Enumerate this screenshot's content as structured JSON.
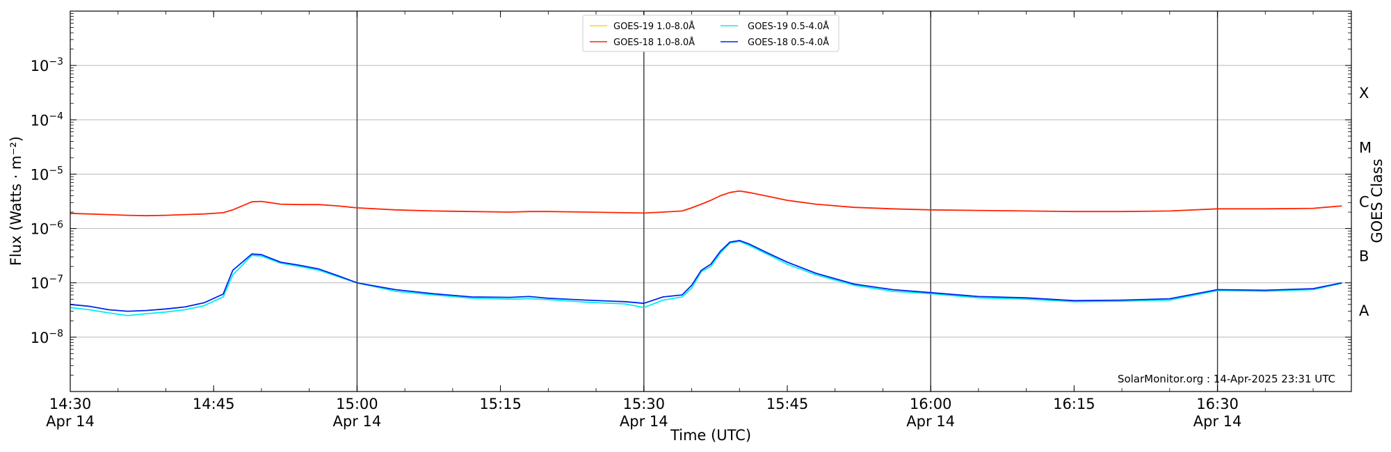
{
  "chart_data": {
    "type": "line",
    "title": "",
    "xlabel": "Time (UTC)",
    "ylabel": "Flux (Watts · m⁻²)",
    "y2label": "GOES Class",
    "yscale": "log",
    "ylim": [
      1e-09,
      0.01
    ],
    "xlim": [
      "2025-04-14 14:30",
      "2025-04-14 16:44"
    ],
    "grid": "horizontal at each decade",
    "legend_position": "top-center",
    "y_ticks": [
      {
        "value": 1e-08,
        "base": "10",
        "exp": "−8"
      },
      {
        "value": 1e-07,
        "base": "10",
        "exp": "−7"
      },
      {
        "value": 1e-06,
        "base": "10",
        "exp": "−6"
      },
      {
        "value": 1e-05,
        "base": "10",
        "exp": "−5"
      },
      {
        "value": 0.0001,
        "base": "10",
        "exp": "−4"
      },
      {
        "value": 0.001,
        "base": "10",
        "exp": "−3"
      }
    ],
    "x_ticks": [
      {
        "time": "14:30",
        "label": "14:30",
        "date": "Apr 14"
      },
      {
        "time": "14:45",
        "label": "14:45",
        "date": ""
      },
      {
        "time": "15:00",
        "label": "15:00",
        "date": "Apr 14"
      },
      {
        "time": "15:15",
        "label": "15:15",
        "date": ""
      },
      {
        "time": "15:30",
        "label": "15:30",
        "date": "Apr 14"
      },
      {
        "time": "15:45",
        "label": "15:45",
        "date": ""
      },
      {
        "time": "16:00",
        "label": "16:00",
        "date": "Apr 14"
      },
      {
        "time": "16:15",
        "label": "16:15",
        "date": ""
      },
      {
        "time": "16:30",
        "label": "16:30",
        "date": "Apr 14"
      }
    ],
    "vertical_lines": [
      "15:00",
      "15:30",
      "16:00",
      "16:30"
    ],
    "goes_classes": [
      {
        "label": "A",
        "value": 3.16e-08
      },
      {
        "label": "B",
        "value": 3.16e-07
      },
      {
        "label": "C",
        "value": 3.16e-06
      },
      {
        "label": "M",
        "value": 3.16e-05
      },
      {
        "label": "X",
        "value": 0.000316
      }
    ],
    "series": [
      {
        "name": "GOES-19 1.0-8.0Å",
        "color": "#FFD700",
        "x": [],
        "values": []
      },
      {
        "name": "GOES-18 1.0-8.0Å",
        "color": "#FF2200",
        "x": [
          "14:30",
          "14:32",
          "14:34",
          "14:36",
          "14:38",
          "14:40",
          "14:42",
          "14:44",
          "14:46",
          "14:47",
          "14:49",
          "14:50",
          "14:52",
          "14:54",
          "14:56",
          "14:58",
          "15:00",
          "15:04",
          "15:08",
          "15:12",
          "15:16",
          "15:18",
          "15:20",
          "15:24",
          "15:28",
          "15:30",
          "15:32",
          "15:34",
          "15:35",
          "15:36",
          "15:37",
          "15:38",
          "15:39",
          "15:40",
          "15:41",
          "15:43",
          "15:45",
          "15:48",
          "15:52",
          "15:56",
          "16:00",
          "16:05",
          "16:10",
          "16:15",
          "16:20",
          "16:25",
          "16:30",
          "16:35",
          "16:40",
          "16:43"
        ],
        "values": [
          1.9e-06,
          1.85e-06,
          1.8e-06,
          1.75e-06,
          1.72e-06,
          1.75e-06,
          1.8e-06,
          1.85e-06,
          1.95e-06,
          2.2e-06,
          3.1e-06,
          3.15e-06,
          2.8e-06,
          2.75e-06,
          2.75e-06,
          2.6e-06,
          2.4e-06,
          2.2e-06,
          2.1e-06,
          2.05e-06,
          2e-06,
          2.05e-06,
          2.05e-06,
          2e-06,
          1.95e-06,
          1.92e-06,
          2e-06,
          2.1e-06,
          2.4e-06,
          2.8e-06,
          3.3e-06,
          4e-06,
          4.6e-06,
          4.9e-06,
          4.6e-06,
          3.9e-06,
          3.3e-06,
          2.8e-06,
          2.45e-06,
          2.3e-06,
          2.2e-06,
          2.15e-06,
          2.1e-06,
          2.05e-06,
          2.05e-06,
          2.1e-06,
          2.3e-06,
          2.3e-06,
          2.35e-06,
          2.6e-06
        ]
      },
      {
        "name": "GOES-19 0.5-4.0Å",
        "color": "#00EEEE",
        "x": [
          "14:30",
          "14:32",
          "14:34",
          "14:36",
          "14:38",
          "14:40",
          "14:42",
          "14:44",
          "14:46",
          "14:47",
          "14:49",
          "14:50",
          "14:52",
          "14:54",
          "14:56",
          "14:58",
          "15:00",
          "15:04",
          "15:08",
          "15:12",
          "15:16",
          "15:18",
          "15:20",
          "15:24",
          "15:28",
          "15:30",
          "15:32",
          "15:34",
          "15:35",
          "15:36",
          "15:37",
          "15:38",
          "15:39",
          "15:40",
          "15:41",
          "15:43",
          "15:45",
          "15:48",
          "15:52",
          "15:56",
          "16:00",
          "16:05",
          "16:10",
          "16:15",
          "16:20",
          "16:25",
          "16:30",
          "16:35",
          "16:40",
          "16:43"
        ],
        "values": [
          3.5e-08,
          3.2e-08,
          2.8e-08,
          2.5e-08,
          2.7e-08,
          2.9e-08,
          3.2e-08,
          3.8e-08,
          5.5e-08,
          1.4e-07,
          3.2e-07,
          3.1e-07,
          2.3e-07,
          2e-07,
          1.7e-07,
          1.3e-07,
          1e-07,
          7e-08,
          6e-08,
          5.2e-08,
          5e-08,
          5.1e-08,
          4.9e-08,
          4.4e-08,
          4.1e-08,
          3.5e-08,
          4.8e-08,
          5.5e-08,
          8e-08,
          1.6e-07,
          2e-07,
          3.5e-07,
          5.4e-07,
          5.8e-07,
          4.9e-07,
          3.3e-07,
          2.2e-07,
          1.4e-07,
          9e-08,
          7e-08,
          6.3e-08,
          5.3e-08,
          5e-08,
          4.5e-08,
          4.6e-08,
          4.8e-08,
          7.2e-08,
          7e-08,
          7.5e-08,
          9.8e-08
        ]
      },
      {
        "name": "GOES-18 0.5-4.0Å",
        "color": "#0022EE",
        "x": [
          "14:30",
          "14:32",
          "14:34",
          "14:36",
          "14:38",
          "14:40",
          "14:42",
          "14:44",
          "14:46",
          "14:47",
          "14:49",
          "14:50",
          "14:52",
          "14:54",
          "14:56",
          "14:58",
          "15:00",
          "15:04",
          "15:08",
          "15:12",
          "15:16",
          "15:18",
          "15:20",
          "15:24",
          "15:28",
          "15:30",
          "15:32",
          "15:34",
          "15:35",
          "15:36",
          "15:37",
          "15:38",
          "15:39",
          "15:40",
          "15:41",
          "15:43",
          "15:45",
          "15:48",
          "15:52",
          "15:56",
          "16:00",
          "16:05",
          "16:10",
          "16:15",
          "16:20",
          "16:25",
          "16:30",
          "16:35",
          "16:40",
          "16:43"
        ],
        "values": [
          4e-08,
          3.7e-08,
          3.2e-08,
          3e-08,
          3.1e-08,
          3.3e-08,
          3.6e-08,
          4.3e-08,
          6.2e-08,
          1.7e-07,
          3.4e-07,
          3.3e-07,
          2.4e-07,
          2.1e-07,
          1.8e-07,
          1.35e-07,
          1e-07,
          7.5e-08,
          6.3e-08,
          5.5e-08,
          5.4e-08,
          5.6e-08,
          5.2e-08,
          4.8e-08,
          4.5e-08,
          4.2e-08,
          5.5e-08,
          6e-08,
          9e-08,
          1.7e-07,
          2.2e-07,
          3.8e-07,
          5.6e-07,
          6e-07,
          5.2e-07,
          3.5e-07,
          2.4e-07,
          1.5e-07,
          9.5e-08,
          7.5e-08,
          6.6e-08,
          5.6e-08,
          5.3e-08,
          4.7e-08,
          4.8e-08,
          5.1e-08,
          7.5e-08,
          7.3e-08,
          7.8e-08,
          1e-07
        ]
      }
    ],
    "annotations": [
      {
        "text": "SolarMonitor.org : 14-Apr-2025 23:31 UTC",
        "position": "bottom-right"
      }
    ]
  }
}
